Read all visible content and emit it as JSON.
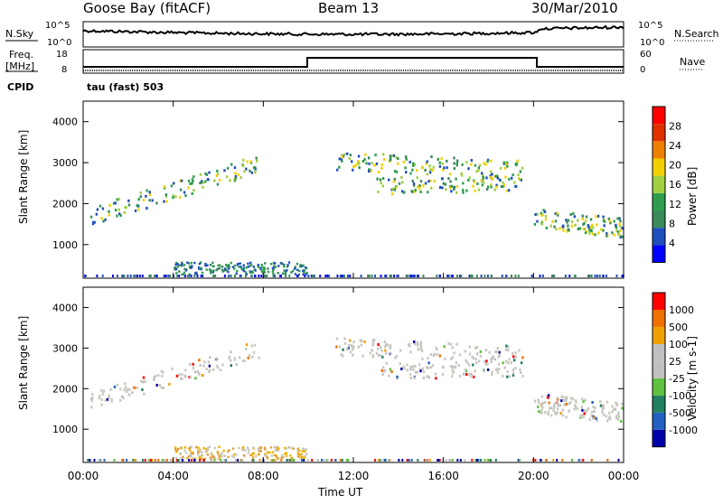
{
  "header": {
    "station": "Goose Bay (fitACF)",
    "beam": "Beam 13",
    "date": "30/Mar/2010"
  },
  "noise_panel": {
    "left_label": "N.Sky",
    "right_label": "N.Search",
    "left_ticks": [
      "10^5",
      "10^0"
    ],
    "right_ticks": [
      "10^5",
      "10^0"
    ]
  },
  "freq_panel": {
    "left_label_1": "Freq.",
    "left_label_2": "[MHz]",
    "right_label": "Nave",
    "left_ticks": [
      "18",
      "8"
    ],
    "right_ticks": [
      "60",
      "0"
    ],
    "cpid_label": "CPID",
    "cpid_text": "tau (fast) 503"
  },
  "colors": {
    "power_scale": [
      "#0000ff",
      "#1f4fbf",
      "#3a8a5a",
      "#2e9e4e",
      "#a0d040",
      "#f0d000",
      "#f08000",
      "#e03000",
      "#ff0000"
    ],
    "velocity_scale": [
      "#0000aa",
      "#2060c0",
      "#208060",
      "#60c040",
      "#c0c0c0",
      "#c0c0c0",
      "#f0a000",
      "#f07000",
      "#ff0000"
    ],
    "grey": "#c8c8c0"
  },
  "chart_data": [
    {
      "type": "heatmap",
      "panel": "power",
      "ylabel": "Slant Range [km]",
      "yticks": [
        "4000",
        "3000",
        "2000",
        "1000"
      ],
      "ylim": [
        180,
        4500
      ],
      "colorbar_label": "Power [dB]",
      "colorbar_ticks": [
        "28",
        "24",
        "20",
        "16",
        "12",
        "8",
        "4"
      ],
      "bands": [
        {
          "t0": 0.3,
          "t1": 7.9,
          "r0": 1650,
          "r1": 2950,
          "width_km": 220,
          "density": 0.55
        },
        {
          "t0": 11.2,
          "t1": 19.5,
          "r0": 3000,
          "r1": 2800,
          "width_km": 220,
          "density": 0.6
        },
        {
          "t0": 13.0,
          "t1": 19.5,
          "r0": 2400,
          "r1": 2450,
          "width_km": 200,
          "density": 0.5
        },
        {
          "t0": 20.0,
          "t1": 23.9,
          "r0": 1600,
          "r1": 1350,
          "width_km": 250,
          "density": 0.55
        }
      ],
      "ground_band": {
        "t0": 4.0,
        "t1": 9.9,
        "r0": 250,
        "r1": 550
      }
    },
    {
      "type": "heatmap",
      "panel": "velocity",
      "ylabel": "Slant Range [km]",
      "yticks": [
        "4000",
        "3000",
        "2000",
        "1000"
      ],
      "ylim": [
        180,
        4500
      ],
      "colorbar_label": "Velocity [m s-1]",
      "colorbar_ticks": [
        "1000",
        "500",
        "100",
        "25",
        "-25",
        "-100",
        "-500",
        "-1000"
      ]
    }
  ],
  "xaxis": {
    "ticks": [
      "00:00",
      "04:00",
      "08:00",
      "12:00",
      "16:00",
      "20:00",
      "00:00"
    ],
    "label": "Time UT",
    "xlim_hours": [
      0,
      24
    ]
  }
}
